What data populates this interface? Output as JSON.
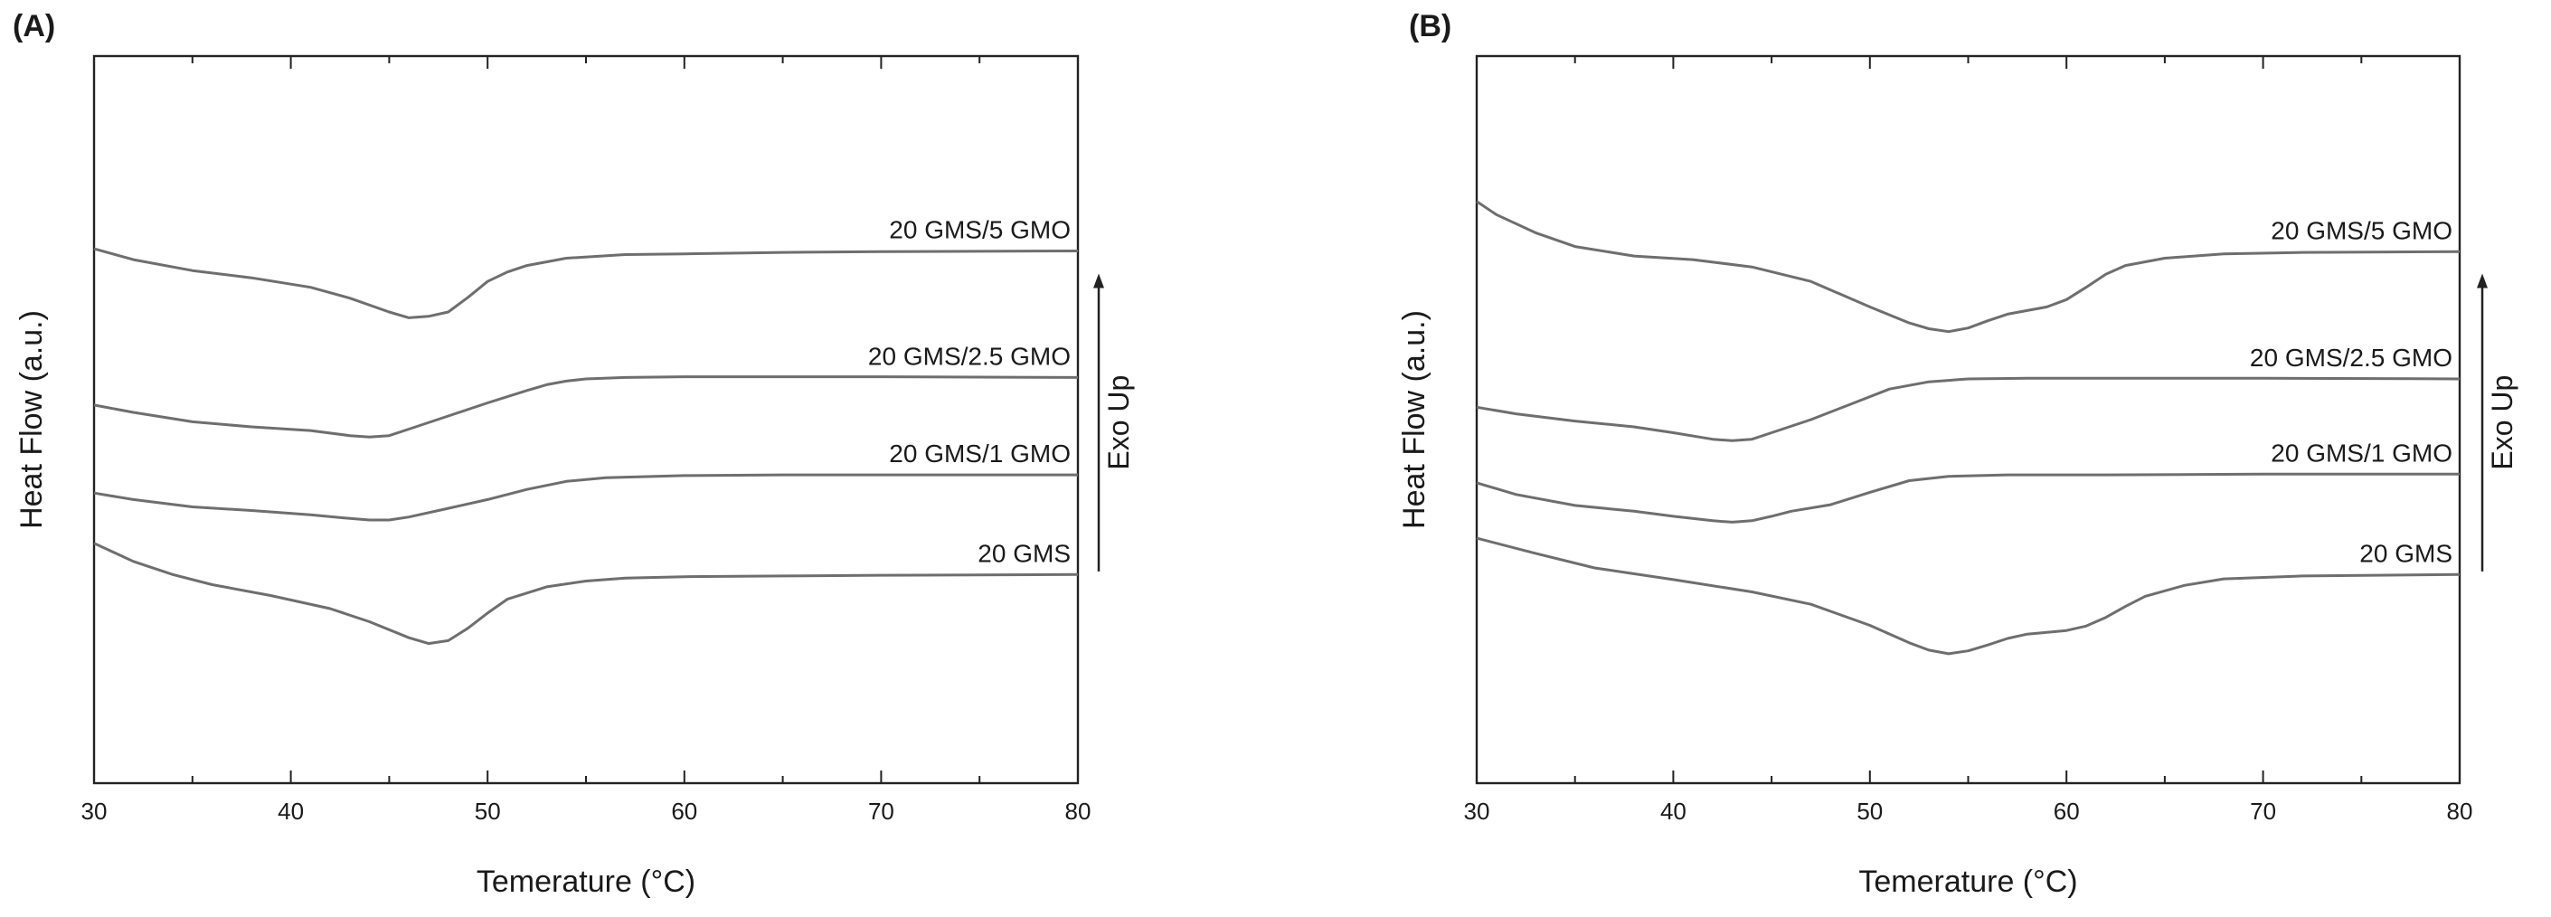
{
  "panels": [
    {
      "label": "(A)"
    },
    {
      "label": "(B)"
    }
  ],
  "chart_data": [
    {
      "type": "line",
      "panel": "(A)",
      "title": "",
      "xlabel": "Temerature (°C)",
      "ylabel": "Heat Flow (a.u.)",
      "annotation": "Exo Up",
      "xlim": [
        30,
        80
      ],
      "xticks": [
        "30",
        "40",
        "50",
        "60",
        "70",
        "80"
      ],
      "ylim": [
        0,
        1
      ],
      "yticks_shown": false,
      "grid": false,
      "series": [
        {
          "name": "20 GMS/5 GMO",
          "x": [
            30,
            32,
            35,
            38,
            41,
            43,
            45,
            46,
            47,
            48,
            49,
            50,
            51,
            52,
            54,
            57,
            60,
            65,
            70,
            80
          ],
          "y": [
            0.735,
            0.72,
            0.705,
            0.695,
            0.682,
            0.667,
            0.648,
            0.64,
            0.642,
            0.648,
            0.668,
            0.69,
            0.703,
            0.712,
            0.722,
            0.727,
            0.728,
            0.73,
            0.731,
            0.732
          ]
        },
        {
          "name": "20 GMS/2.5 GMO",
          "x": [
            30,
            32,
            35,
            38,
            41,
            43,
            44,
            45,
            46,
            48,
            50,
            52,
            53,
            54,
            55,
            57,
            60,
            65,
            70,
            80
          ],
          "y": [
            0.52,
            0.51,
            0.497,
            0.49,
            0.485,
            0.478,
            0.476,
            0.478,
            0.487,
            0.505,
            0.523,
            0.54,
            0.548,
            0.553,
            0.556,
            0.558,
            0.559,
            0.559,
            0.559,
            0.558
          ]
        },
        {
          "name": "20 GMS/1 GMO",
          "x": [
            30,
            32,
            35,
            38,
            41,
            43,
            44,
            45,
            46,
            48,
            50,
            52,
            54,
            56,
            60,
            65,
            70,
            80
          ],
          "y": [
            0.399,
            0.39,
            0.38,
            0.375,
            0.369,
            0.364,
            0.362,
            0.362,
            0.366,
            0.378,
            0.39,
            0.404,
            0.415,
            0.42,
            0.423,
            0.424,
            0.424,
            0.424
          ]
        },
        {
          "name": "20 GMS",
          "x": [
            30,
            32,
            34,
            36,
            39,
            42,
            44,
            46,
            47,
            48,
            49,
            50,
            51,
            53,
            55,
            57,
            60,
            65,
            70,
            80
          ],
          "y": [
            0.33,
            0.305,
            0.287,
            0.273,
            0.258,
            0.24,
            0.222,
            0.2,
            0.192,
            0.196,
            0.213,
            0.234,
            0.253,
            0.27,
            0.278,
            0.282,
            0.284,
            0.285,
            0.286,
            0.287
          ]
        }
      ]
    },
    {
      "type": "line",
      "panel": "(B)",
      "title": "",
      "xlabel": "Temerature (°C)",
      "ylabel": "Heat Flow (a.u.)",
      "annotation": "Exo Up",
      "xlim": [
        30,
        80
      ],
      "xticks": [
        "30",
        "40",
        "50",
        "60",
        "70",
        "80"
      ],
      "ylim": [
        0,
        1
      ],
      "yticks_shown": false,
      "grid": false,
      "series": [
        {
          "name": "20 GMS/5 GMO",
          "x": [
            30,
            31,
            33,
            35,
            38,
            41,
            44,
            47,
            50,
            52,
            53,
            54,
            55,
            56,
            57,
            58,
            59,
            60,
            61,
            62,
            63,
            65,
            68,
            72,
            80
          ],
          "y": [
            0.8,
            0.782,
            0.757,
            0.738,
            0.725,
            0.72,
            0.71,
            0.69,
            0.655,
            0.633,
            0.625,
            0.621,
            0.626,
            0.636,
            0.645,
            0.65,
            0.655,
            0.665,
            0.682,
            0.7,
            0.712,
            0.722,
            0.728,
            0.73,
            0.731
          ]
        },
        {
          "name": "20 GMS/2.5 GMO",
          "x": [
            30,
            32,
            35,
            38,
            40,
            42,
            43,
            44,
            45,
            47,
            49,
            51,
            53,
            55,
            58,
            62,
            70,
            80
          ],
          "y": [
            0.517,
            0.508,
            0.498,
            0.49,
            0.482,
            0.473,
            0.471,
            0.473,
            0.482,
            0.5,
            0.521,
            0.542,
            0.552,
            0.556,
            0.557,
            0.557,
            0.557,
            0.556
          ]
        },
        {
          "name": "20 GMS/1 GMO",
          "x": [
            30,
            32,
            35,
            38,
            40,
            42,
            43,
            44,
            45,
            46,
            48,
            50,
            52,
            54,
            57,
            62,
            70,
            80
          ],
          "y": [
            0.413,
            0.397,
            0.382,
            0.374,
            0.367,
            0.361,
            0.359,
            0.361,
            0.367,
            0.374,
            0.383,
            0.4,
            0.416,
            0.422,
            0.424,
            0.424,
            0.425,
            0.425
          ]
        },
        {
          "name": "20 GMS",
          "x": [
            30,
            33,
            36,
            40,
            44,
            47,
            50,
            52,
            53,
            54,
            55,
            56,
            57,
            58,
            60,
            61,
            62,
            63,
            64,
            66,
            68,
            72,
            80
          ],
          "y": [
            0.337,
            0.316,
            0.296,
            0.28,
            0.263,
            0.246,
            0.217,
            0.193,
            0.183,
            0.178,
            0.182,
            0.19,
            0.199,
            0.205,
            0.21,
            0.216,
            0.228,
            0.243,
            0.257,
            0.272,
            0.281,
            0.285,
            0.287
          ]
        }
      ]
    }
  ]
}
